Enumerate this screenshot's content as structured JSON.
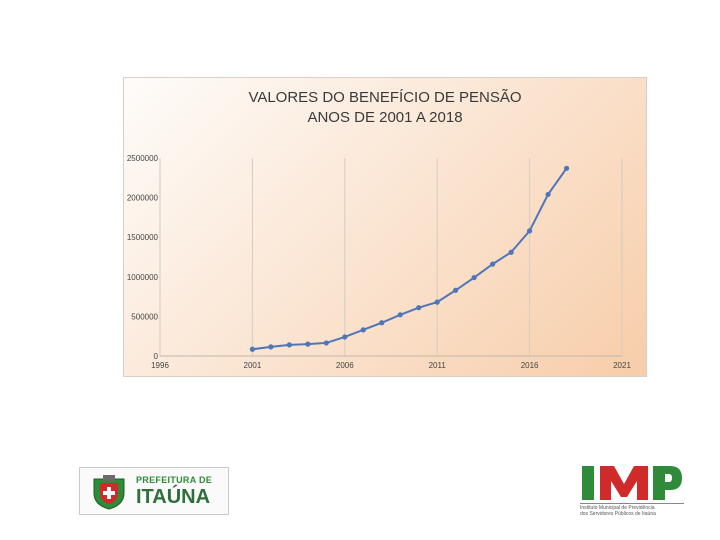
{
  "chart_data": {
    "type": "line",
    "title_lines": [
      "VALORES DO BENEFÍCIO DE PENSÃO",
      "ANOS DE 2001 A 2018"
    ],
    "x_ticks": [
      "1996",
      "2001",
      "2006",
      "2011",
      "2016",
      "2021"
    ],
    "y_ticks": [
      "0",
      "500000",
      "1000000",
      "1500000",
      "2000000",
      "2500000"
    ],
    "xlim": [
      1996,
      2021
    ],
    "ylim": [
      0,
      2500000
    ],
    "grid": "vertical",
    "line_color": "#4f76b8",
    "x": [
      2001,
      2002,
      2003,
      2004,
      2005,
      2006,
      2007,
      2008,
      2009,
      2010,
      2011,
      2012,
      2013,
      2014,
      2015,
      2016,
      2017,
      2018
    ],
    "values": [
      85000,
      115000,
      140000,
      150000,
      165000,
      240000,
      330000,
      420000,
      520000,
      610000,
      680000,
      830000,
      990000,
      1160000,
      1310000,
      1580000,
      2040000,
      2370000
    ]
  },
  "logos": {
    "left_tagline": "PREFEITURA DE",
    "left_city": "ITAÚNA",
    "right_subtitle_lines": [
      "Instituto Municipal de Previdência",
      "dos Servidores Públicos de Itaúna"
    ],
    "colors": {
      "green": "#2f8a3a",
      "red": "#d12a2a"
    }
  }
}
